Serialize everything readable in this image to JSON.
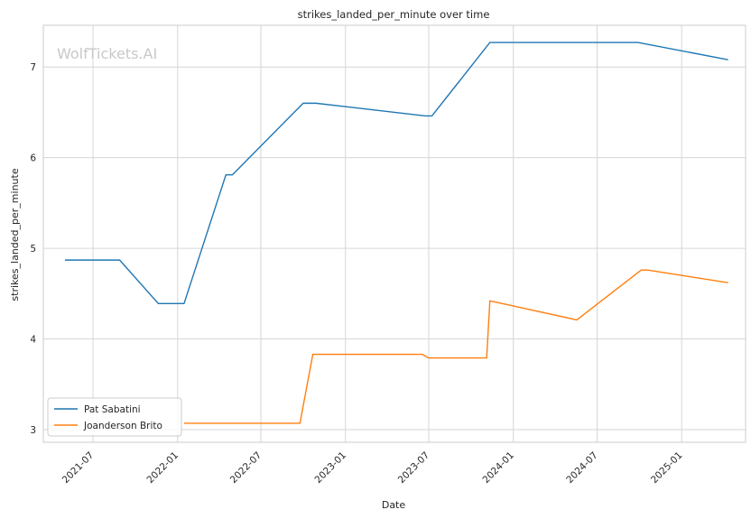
{
  "chart_data": {
    "type": "line",
    "title": "strikes_landed_per_minute over time",
    "xlabel": "Date",
    "ylabel": "strikes_landed_per_minute",
    "watermark": "WolfTickets.AI",
    "x_ticks": [
      "2021-07",
      "2022-01",
      "2022-07",
      "2023-01",
      "2023-07",
      "2024-01",
      "2024-07",
      "2025-01"
    ],
    "y_ticks": [
      3,
      4,
      5,
      6,
      7
    ],
    "xlim": [
      "2021-03-15",
      "2025-05-20"
    ],
    "ylim": [
      2.86,
      7.46
    ],
    "grid": true,
    "legend_position": "lower-left",
    "series": [
      {
        "name": "Pat Sabatini",
        "color": "#1f77b4",
        "points": [
          [
            "2021-05-01",
            4.87
          ],
          [
            "2021-08-28",
            4.87
          ],
          [
            "2021-11-20",
            4.39
          ],
          [
            "2022-01-15",
            4.39
          ],
          [
            "2022-04-16",
            5.81
          ],
          [
            "2022-04-30",
            5.81
          ],
          [
            "2022-10-01",
            6.6
          ],
          [
            "2022-10-29",
            6.6
          ],
          [
            "2023-06-24",
            6.46
          ],
          [
            "2023-07-08",
            6.46
          ],
          [
            "2023-11-11",
            7.27
          ],
          [
            "2024-09-28",
            7.27
          ],
          [
            "2025-04-12",
            7.08
          ]
        ]
      },
      {
        "name": "Joanderson Brito",
        "color": "#ff7f0e",
        "points": [
          [
            "2022-01-15",
            3.07
          ],
          [
            "2022-09-24",
            3.07
          ],
          [
            "2022-10-22",
            3.83
          ],
          [
            "2023-06-17",
            3.83
          ],
          [
            "2023-07-01",
            3.79
          ],
          [
            "2023-11-04",
            3.79
          ],
          [
            "2023-11-11",
            4.42
          ],
          [
            "2024-05-18",
            4.21
          ],
          [
            "2024-10-05",
            4.76
          ],
          [
            "2024-10-19",
            4.76
          ],
          [
            "2025-04-12",
            4.62
          ]
        ]
      }
    ]
  }
}
